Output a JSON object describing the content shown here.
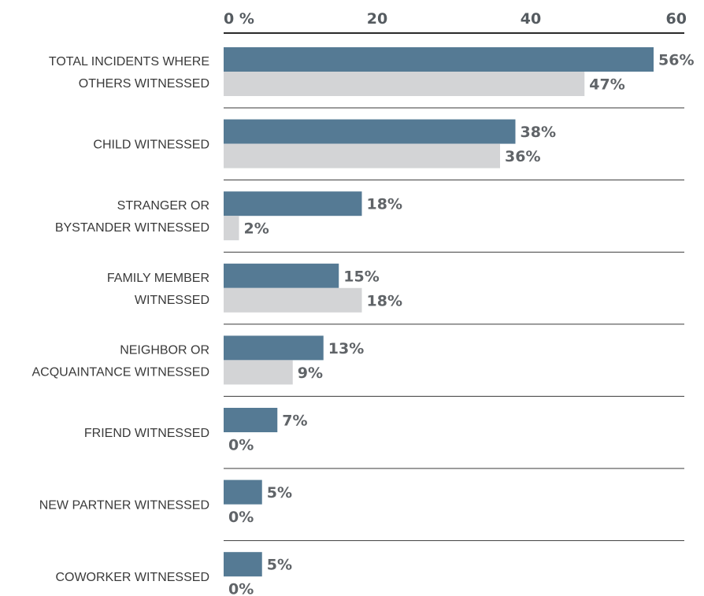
{
  "chart_data": {
    "type": "bar",
    "orientation": "horizontal",
    "xlim": [
      0,
      60
    ],
    "x_ticks": [
      {
        "value": 0,
        "label": "0 %"
      },
      {
        "value": 20,
        "label": "20"
      },
      {
        "value": 40,
        "label": "40"
      },
      {
        "value": 60,
        "label": "60"
      }
    ],
    "axis_position": "top",
    "grid": false,
    "categories": [
      [
        "TOTAL INCIDENTS WHERE",
        "OTHERS WITNESSED"
      ],
      [
        "CHILD WITNESSED"
      ],
      [
        "STRANGER OR",
        "BYSTANDER WITNESSED"
      ],
      [
        "FAMILY MEMBER",
        "WITNESSED"
      ],
      [
        "NEIGHBOR OR",
        "ACQUAINTANCE WITNESSED"
      ],
      [
        "FRIEND WITNESSED"
      ],
      [
        "NEW PARTNER WITNESSED"
      ],
      [
        "COWORKER WITNESSED"
      ]
    ],
    "series": [
      {
        "color": "#557a94",
        "values": [
          56,
          38,
          18,
          15,
          13,
          7,
          5,
          5
        ],
        "labels": [
          "56%",
          "38%",
          "18%",
          "15%",
          "13%",
          "7%",
          "5%",
          "5%"
        ]
      },
      {
        "color": "#d3d4d6",
        "values": [
          47,
          36,
          2,
          18,
          9,
          0,
          0,
          0
        ],
        "labels": [
          "47%",
          "36%",
          "2%",
          "18%",
          "9%",
          "0%",
          "0%",
          "0%"
        ]
      }
    ]
  }
}
